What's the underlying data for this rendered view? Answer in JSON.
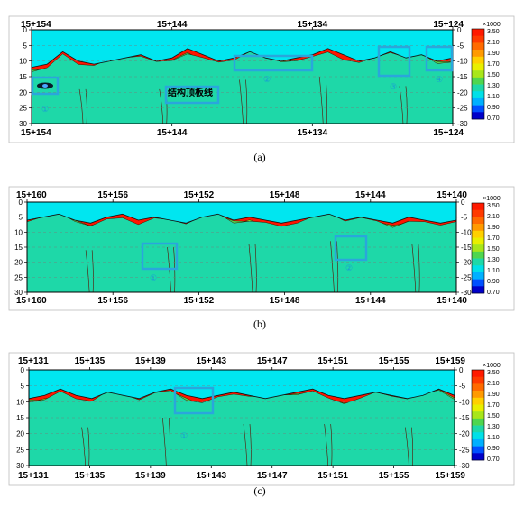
{
  "panels": [
    {
      "id": "a",
      "caption": "(a)",
      "top_stations": [
        "15+154",
        "15+144",
        "15+134",
        "15+124"
      ],
      "bottom_stations": [
        "15+154",
        "15+144",
        "15+134",
        "15+124"
      ],
      "depth_ticks_left": [
        "0",
        "5",
        "10",
        "15",
        "20",
        "25",
        "30"
      ],
      "depth_ticks_right": [
        "0",
        "-5",
        "-10",
        "-15",
        "-20",
        "-25",
        "-30"
      ],
      "annotations": [
        "①",
        "结构顶板线",
        "②",
        "③",
        "④"
      ]
    },
    {
      "id": "b",
      "caption": "(b)",
      "top_stations": [
        "15+160",
        "15+156",
        "15+152",
        "15+148",
        "15+144",
        "15+140"
      ],
      "bottom_stations": [
        "15+160",
        "15+156",
        "15+152",
        "15+148",
        "15+144",
        "15+140"
      ],
      "depth_ticks_left": [
        "0",
        "5",
        "10",
        "15",
        "20",
        "25",
        "30"
      ],
      "depth_ticks_right": [
        "0",
        "-5",
        "-10",
        "-15",
        "-20",
        "-25",
        "-30"
      ],
      "annotations": [
        "①",
        "②"
      ]
    },
    {
      "id": "c",
      "caption": "(c)",
      "top_stations": [
        "15+131",
        "15+135",
        "15+139",
        "15+143",
        "15+147",
        "15+151",
        "15+155",
        "15+159"
      ],
      "bottom_stations": [
        "15+131",
        "15+135",
        "15+139",
        "15+143",
        "15+147",
        "15+151",
        "15+155",
        "15+159"
      ],
      "depth_ticks_left": [
        "0",
        "5",
        "10",
        "15",
        "20",
        "25",
        "30"
      ],
      "depth_ticks_right": [
        "0",
        "-5",
        "-10",
        "-15",
        "-20",
        "-25",
        "-30"
      ],
      "annotations": [
        "①"
      ]
    }
  ],
  "legend": {
    "unit": "×1000",
    "labels": [
      "3.50",
      "2.10",
      "1.90",
      "1.70",
      "1.50",
      "1.30",
      "1.10",
      "0.90",
      "0.70"
    ],
    "colors": [
      "#ff1a00",
      "#ff3a00",
      "#ff6a00",
      "#ff9a00",
      "#ffd000",
      "#e9ef00",
      "#a8e61a",
      "#4fd64f",
      "#1ed8a8",
      "#00e0e8",
      "#00b0ff",
      "#0050ff",
      "#0000c8"
    ]
  },
  "colors": {
    "resistive_layer": "#00e6f0",
    "conductive_bulk": "#ff1500",
    "highlight_box": "#2aa6dc"
  },
  "chart_data": [
    {
      "type": "heatmap",
      "panel": "a",
      "x_label_values": [
        "15+154",
        "15+144",
        "15+134",
        "15+124"
      ],
      "y_range": [
        0,
        30
      ],
      "y_ticks": [
        0,
        5,
        10,
        15,
        20,
        25,
        30
      ],
      "color_scale_values": [
        3.5,
        2.1,
        1.9,
        1.7,
        1.5,
        1.3,
        1.1,
        0.9,
        0.7
      ],
      "boundary_depth_profile": [
        12,
        11,
        7,
        10,
        11,
        10,
        9,
        8,
        10,
        9,
        6,
        8,
        10,
        9,
        7,
        9,
        10,
        9,
        8,
        6,
        8,
        10,
        9,
        7,
        9,
        8,
        10,
        9
      ],
      "marked_regions": [
        "①",
        "结构顶板线",
        "②",
        "③",
        "④"
      ]
    },
    {
      "type": "heatmap",
      "panel": "b",
      "x_label_values": [
        "15+160",
        "15+156",
        "15+152",
        "15+148",
        "15+144",
        "15+140"
      ],
      "y_range": [
        0,
        30
      ],
      "y_ticks": [
        0,
        5,
        10,
        15,
        20,
        25,
        30
      ],
      "color_scale_values": [
        3.5,
        2.1,
        1.9,
        1.7,
        1.5,
        1.3,
        1.1,
        0.9,
        0.7
      ],
      "boundary_depth_profile": [
        6,
        5,
        4,
        6,
        7,
        5,
        4,
        6,
        5,
        6,
        7,
        5,
        4,
        6,
        5,
        6,
        7,
        6,
        5,
        4,
        6,
        5,
        6,
        7,
        5,
        6,
        7,
        6
      ],
      "marked_regions": [
        "①",
        "②"
      ]
    },
    {
      "type": "heatmap",
      "panel": "c",
      "x_label_values": [
        "15+131",
        "15+135",
        "15+139",
        "15+143",
        "15+147",
        "15+151",
        "15+155",
        "15+159"
      ],
      "y_range": [
        0,
        30
      ],
      "y_ticks": [
        0,
        5,
        10,
        15,
        20,
        25,
        30
      ],
      "color_scale_values": [
        3.5,
        2.1,
        1.9,
        1.7,
        1.5,
        1.3,
        1.1,
        0.9,
        0.7
      ],
      "boundary_depth_profile": [
        9,
        8,
        6,
        8,
        9,
        7,
        8,
        9,
        7,
        6,
        8,
        9,
        8,
        7,
        8,
        9,
        8,
        7,
        6,
        8,
        9,
        8,
        7,
        8,
        9,
        8,
        6,
        8
      ],
      "marked_regions": [
        "①"
      ]
    }
  ]
}
